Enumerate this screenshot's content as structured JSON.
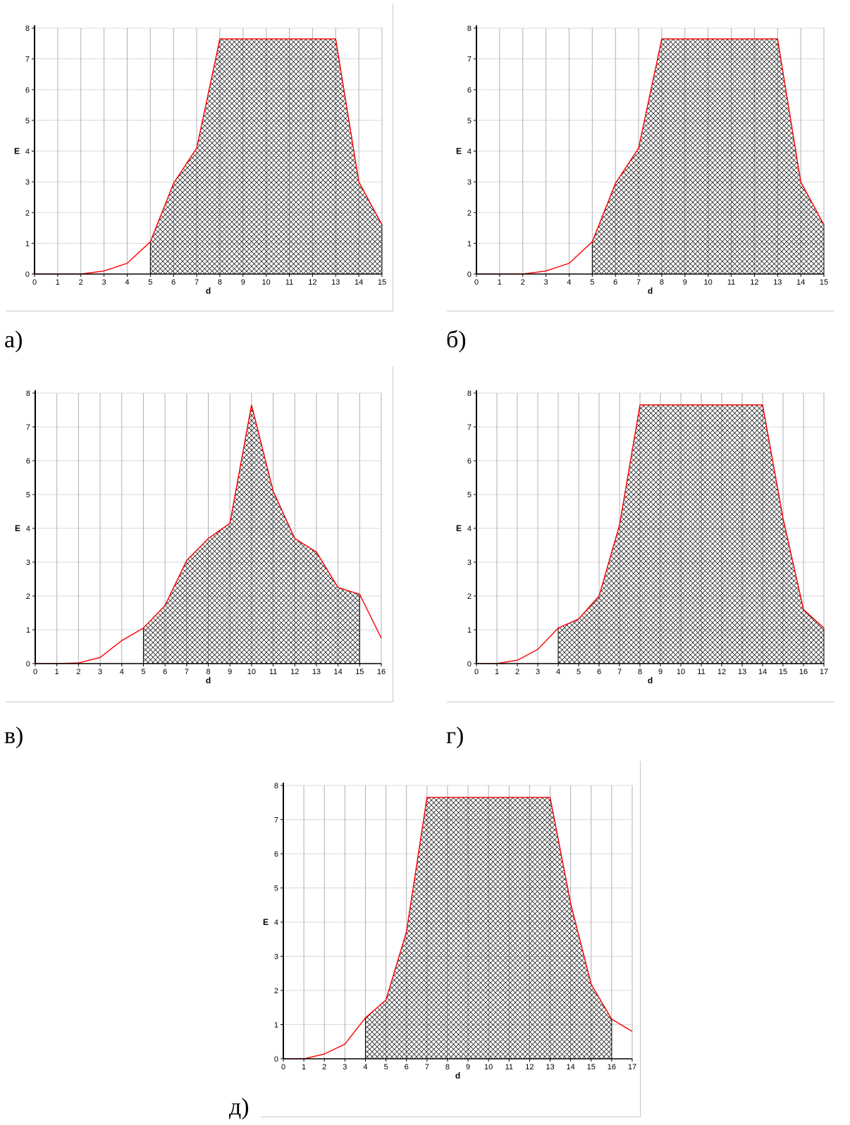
{
  "chart_data": [
    {
      "id": "a",
      "caption": "а)",
      "type": "area",
      "xlabel": "d",
      "ylabel": "E",
      "xlim": [
        0,
        15
      ],
      "ylim": [
        0,
        8
      ],
      "x_ticks": [
        0,
        1,
        2,
        3,
        4,
        5,
        6,
        7,
        8,
        9,
        10,
        11,
        12,
        13,
        14,
        15
      ],
      "y_ticks": [
        0,
        1,
        2,
        3,
        4,
        5,
        6,
        7,
        8
      ],
      "grid": true,
      "line_color": "#ff0000",
      "series": [
        {
          "x": [
            0,
            1,
            2,
            3,
            4,
            5,
            6,
            7,
            8,
            9,
            10,
            11,
            12,
            13,
            14,
            15
          ],
          "values": [
            0,
            0,
            0,
            0.1,
            0.35,
            1.05,
            2.95,
            4.1,
            7.65,
            7.65,
            7.65,
            7.65,
            7.65,
            7.65,
            3.0,
            1.6
          ]
        }
      ],
      "shaded_range": [
        5,
        15
      ]
    },
    {
      "id": "b",
      "caption": "б)",
      "type": "area",
      "xlabel": "d",
      "ylabel": "E",
      "xlim": [
        0,
        15
      ],
      "ylim": [
        0,
        8
      ],
      "x_ticks": [
        0,
        1,
        2,
        3,
        4,
        5,
        6,
        7,
        8,
        9,
        10,
        11,
        12,
        13,
        14,
        15
      ],
      "y_ticks": [
        0,
        1,
        2,
        3,
        4,
        5,
        6,
        7,
        8
      ],
      "grid": true,
      "line_color": "#ff0000",
      "series": [
        {
          "x": [
            0,
            1,
            2,
            3,
            4,
            5,
            6,
            7,
            8,
            9,
            10,
            11,
            12,
            13,
            14,
            15
          ],
          "values": [
            0,
            0,
            0,
            0.1,
            0.35,
            1.05,
            2.95,
            4.1,
            7.65,
            7.65,
            7.65,
            7.65,
            7.65,
            7.65,
            3.0,
            1.6
          ]
        }
      ],
      "shaded_range": [
        5,
        15
      ]
    },
    {
      "id": "v",
      "caption": "в)",
      "type": "area",
      "xlabel": "d",
      "ylabel": "E",
      "xlim": [
        0,
        16
      ],
      "ylim": [
        0,
        8
      ],
      "x_ticks": [
        0,
        1,
        2,
        3,
        4,
        5,
        6,
        7,
        8,
        9,
        10,
        11,
        12,
        13,
        14,
        15,
        16
      ],
      "y_ticks": [
        0,
        1,
        2,
        3,
        4,
        5,
        6,
        7,
        8
      ],
      "grid": true,
      "line_color": "#ff0000",
      "series": [
        {
          "x": [
            0,
            1,
            2,
            3,
            4,
            5,
            6,
            7,
            8,
            9,
            10,
            11,
            12,
            13,
            14,
            15,
            16
          ],
          "values": [
            0,
            0,
            0.02,
            0.18,
            0.68,
            1.05,
            1.72,
            3.05,
            3.7,
            4.15,
            7.65,
            5.1,
            3.7,
            3.3,
            2.25,
            2.05,
            0.75
          ]
        }
      ],
      "shaded_range": [
        5,
        15
      ]
    },
    {
      "id": "g",
      "caption": "г)",
      "type": "area",
      "xlabel": "d",
      "ylabel": "E",
      "xlim": [
        0,
        17
      ],
      "ylim": [
        0,
        8
      ],
      "x_ticks": [
        0,
        1,
        2,
        3,
        4,
        5,
        6,
        7,
        8,
        9,
        10,
        11,
        12,
        13,
        14,
        15,
        16,
        17
      ],
      "y_ticks": [
        0,
        1,
        2,
        3,
        4,
        5,
        6,
        7,
        8
      ],
      "grid": true,
      "line_color": "#ff0000",
      "series": [
        {
          "x": [
            0,
            1,
            2,
            3,
            4,
            5,
            6,
            7,
            8,
            9,
            10,
            11,
            12,
            13,
            14,
            15,
            16,
            17
          ],
          "values": [
            0,
            0,
            0.1,
            0.42,
            1.05,
            1.32,
            2.0,
            4.1,
            7.65,
            7.65,
            7.65,
            7.65,
            7.65,
            7.65,
            7.65,
            4.3,
            1.6,
            1.05
          ]
        }
      ],
      "shaded_range": [
        4,
        17
      ]
    },
    {
      "id": "d",
      "caption": "д)",
      "type": "area",
      "xlabel": "d",
      "ylabel": "E",
      "xlim": [
        0,
        17
      ],
      "ylim": [
        0,
        8
      ],
      "x_ticks": [
        0,
        1,
        2,
        3,
        4,
        5,
        6,
        7,
        8,
        9,
        10,
        11,
        12,
        13,
        14,
        15,
        16,
        17
      ],
      "y_ticks": [
        0,
        1,
        2,
        3,
        4,
        5,
        6,
        7,
        8
      ],
      "grid": true,
      "line_color": "#ff0000",
      "series": [
        {
          "x": [
            0,
            1,
            2,
            3,
            4,
            5,
            6,
            7,
            8,
            9,
            10,
            11,
            12,
            13,
            14,
            15,
            16,
            17
          ],
          "values": [
            0,
            0,
            0.14,
            0.43,
            1.2,
            1.72,
            3.72,
            7.65,
            7.65,
            7.65,
            7.65,
            7.65,
            7.65,
            7.65,
            4.55,
            2.18,
            1.16,
            0.8
          ]
        }
      ],
      "shaded_range": [
        4,
        16
      ]
    }
  ]
}
